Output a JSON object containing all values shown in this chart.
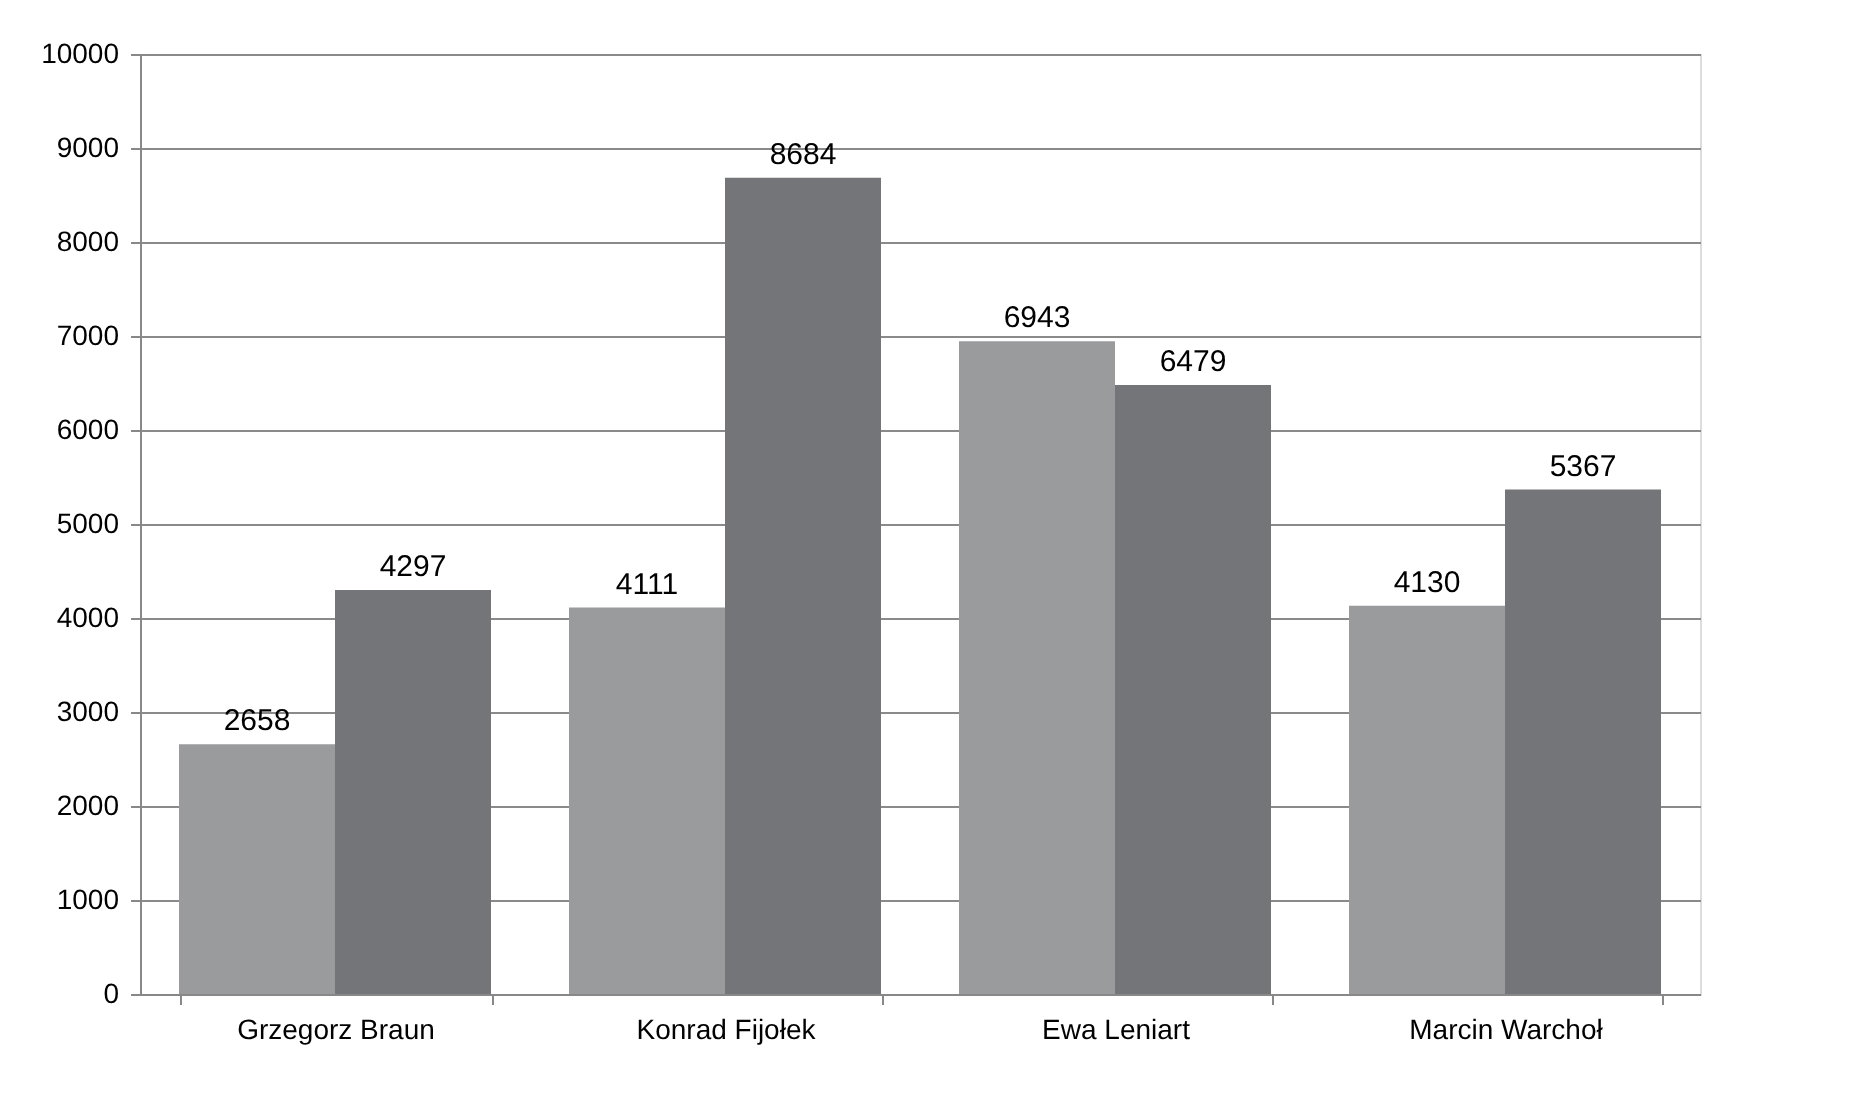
{
  "chart_data": {
    "type": "bar",
    "categories": [
      "Grzegorz Braun",
      "Konrad Fijołek",
      "Ewa Leniart",
      "Marcin Warchoł"
    ],
    "series": [
      {
        "color": "#9a9b9d",
        "values": [
          2658,
          4111,
          6943,
          4130
        ]
      },
      {
        "color": "#747578",
        "values": [
          4297,
          8684,
          6479,
          5367
        ]
      }
    ],
    "ylim": [
      0,
      10000
    ],
    "yticks": [
      0,
      1000,
      2000,
      3000,
      4000,
      5000,
      6000,
      7000,
      8000,
      9000,
      10000
    ],
    "grid": "y",
    "data_labels": true,
    "legend": false
  }
}
